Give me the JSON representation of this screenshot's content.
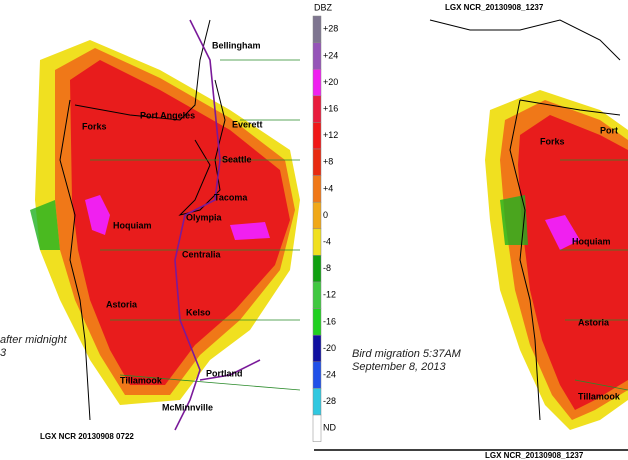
{
  "left_panel": {
    "cities": [
      "Bellingham",
      "Port Angeles",
      "Everett",
      "Forks",
      "Seattle",
      "Tacoma",
      "Olympia",
      "Hoquiam",
      "Centralia",
      "Astoria",
      "Kelso",
      "Portland",
      "Tillamook",
      "McMinnville"
    ],
    "caption": [
      "after midnight",
      "3"
    ],
    "stamp": "LGX NCR  20130908  0722"
  },
  "legend": {
    "unit": "DBZ",
    "items": [
      {
        "label": "+28",
        "color": "#7e7590"
      },
      {
        "label": "+24",
        "color": "#9554b8"
      },
      {
        "label": "+20",
        "color": "#f020f0"
      },
      {
        "label": "+16",
        "color": "#e81c3c"
      },
      {
        "label": "+12",
        "color": "#f01818"
      },
      {
        "label": "+8",
        "color": "#e82a10"
      },
      {
        "label": "+4",
        "color": "#f07818"
      },
      {
        "label": "0",
        "color": "#f0a818"
      },
      {
        "label": "-4",
        "color": "#f0e020"
      },
      {
        "label": "-8",
        "color": "#10a010"
      },
      {
        "label": "-12",
        "color": "#40c840"
      },
      {
        "label": "-16",
        "color": "#20d020"
      },
      {
        "label": "-20",
        "color": "#1010a0"
      },
      {
        "label": "-24",
        "color": "#2050e8"
      },
      {
        "label": "-28",
        "color": "#30c8e0"
      },
      {
        "label": "ND",
        "color": "#ffffff"
      }
    ]
  },
  "right_panel": {
    "title": "LGX NCR_20130908_1237",
    "cities": [
      "Port",
      "Forks",
      "Hoquiam",
      "Astoria",
      "Tillamook"
    ],
    "caption": [
      "Bird migration 5:37AM",
      "September 8, 2013"
    ],
    "stamp": "LGX NCR_20130908_1237"
  }
}
